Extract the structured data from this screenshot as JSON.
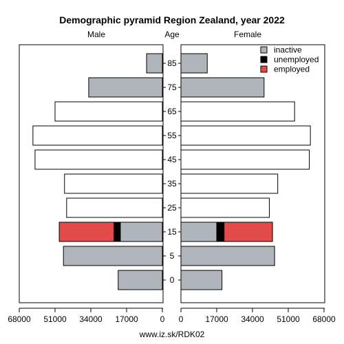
{
  "colors": {
    "inactive": "#b0b5bc",
    "unemployed": "#000000",
    "employed": "#e34b4b",
    "white_bar": "#ffffff",
    "stroke": "#000000"
  },
  "chart_data": {
    "type": "bar",
    "orientation": "horizontal-pyramid",
    "title": "Demographic pyramid Region Zealand, year 2022",
    "left_label": "Male",
    "center_label": "Age",
    "right_label": "Female",
    "age_groups": [
      "0",
      "5",
      "15",
      "25",
      "35",
      "45",
      "55",
      "65",
      "75",
      "85"
    ],
    "x_ticks_left": [
      "68000",
      "51000",
      "34000",
      "17000",
      "0"
    ],
    "x_ticks_right": [
      "0",
      "17000",
      "34000",
      "51000",
      "68000"
    ],
    "x_max": 68000,
    "male": {
      "inactive": [
        21000,
        47000,
        20000,
        0,
        0,
        0,
        0,
        0,
        35000,
        7500
      ],
      "unemployed": [
        0,
        0,
        3000,
        0,
        0,
        0,
        0,
        0,
        0,
        0
      ],
      "employed": [
        0,
        0,
        26000,
        0,
        0,
        0,
        0,
        0,
        0,
        0
      ],
      "total": [
        21000,
        47000,
        49000,
        45500,
        46500,
        60500,
        61500,
        51000,
        35000,
        7500
      ]
    },
    "female": {
      "inactive": [
        19500,
        44500,
        17000,
        0,
        0,
        0,
        0,
        0,
        39500,
        12500
      ],
      "unemployed": [
        0,
        0,
        3500,
        0,
        0,
        0,
        0,
        0,
        0,
        0
      ],
      "employed": [
        0,
        0,
        23000,
        0,
        0,
        0,
        0,
        0,
        0,
        0
      ],
      "total": [
        19500,
        44500,
        43500,
        42000,
        46000,
        61000,
        61500,
        54000,
        39500,
        12500
      ]
    },
    "legend": {
      "placement": "top-right",
      "items": [
        {
          "key": "inactive",
          "label": "inactive"
        },
        {
          "key": "unemployed",
          "label": "unemployed"
        },
        {
          "key": "employed",
          "label": "employed"
        }
      ]
    },
    "source": "www.iz.sk/RDK02"
  }
}
